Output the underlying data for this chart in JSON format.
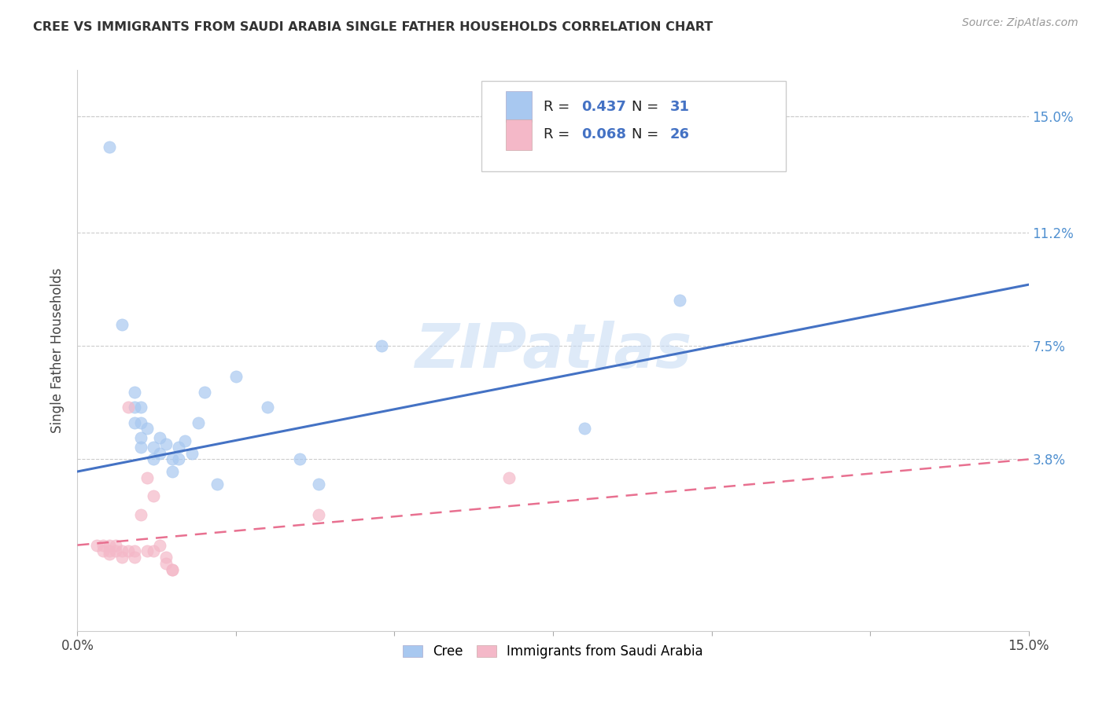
{
  "title": "CREE VS IMMIGRANTS FROM SAUDI ARABIA SINGLE FATHER HOUSEHOLDS CORRELATION CHART",
  "source": "Source: ZipAtlas.com",
  "ylabel": "Single Father Households",
  "xlim": [
    0.0,
    0.15
  ],
  "ylim": [
    -0.018,
    0.165
  ],
  "legend_blue_r": "0.437",
  "legend_blue_n": "31",
  "legend_pink_r": "0.068",
  "legend_pink_n": "26",
  "blue_color": "#A8C8F0",
  "pink_color": "#F4B8C8",
  "blue_line_color": "#4472C4",
  "pink_line_color": "#E87090",
  "watermark_color": "#C8DCF4",
  "blue_scatter": [
    [
      0.005,
      0.14
    ],
    [
      0.007,
      0.082
    ],
    [
      0.009,
      0.06
    ],
    [
      0.009,
      0.055
    ],
    [
      0.009,
      0.05
    ],
    [
      0.01,
      0.055
    ],
    [
      0.01,
      0.05
    ],
    [
      0.01,
      0.045
    ],
    [
      0.01,
      0.042
    ],
    [
      0.011,
      0.048
    ],
    [
      0.012,
      0.042
    ],
    [
      0.012,
      0.038
    ],
    [
      0.013,
      0.045
    ],
    [
      0.013,
      0.04
    ],
    [
      0.014,
      0.043
    ],
    [
      0.015,
      0.038
    ],
    [
      0.015,
      0.034
    ],
    [
      0.016,
      0.042
    ],
    [
      0.016,
      0.038
    ],
    [
      0.017,
      0.044
    ],
    [
      0.018,
      0.04
    ],
    [
      0.019,
      0.05
    ],
    [
      0.02,
      0.06
    ],
    [
      0.022,
      0.03
    ],
    [
      0.025,
      0.065
    ],
    [
      0.03,
      0.055
    ],
    [
      0.035,
      0.038
    ],
    [
      0.038,
      0.03
    ],
    [
      0.048,
      0.075
    ],
    [
      0.08,
      0.048
    ],
    [
      0.095,
      0.09
    ]
  ],
  "pink_scatter": [
    [
      0.003,
      0.01
    ],
    [
      0.004,
      0.01
    ],
    [
      0.004,
      0.008
    ],
    [
      0.005,
      0.01
    ],
    [
      0.005,
      0.008
    ],
    [
      0.005,
      0.007
    ],
    [
      0.006,
      0.01
    ],
    [
      0.006,
      0.008
    ],
    [
      0.007,
      0.008
    ],
    [
      0.007,
      0.006
    ],
    [
      0.008,
      0.008
    ],
    [
      0.008,
      0.055
    ],
    [
      0.009,
      0.008
    ],
    [
      0.009,
      0.006
    ],
    [
      0.01,
      0.02
    ],
    [
      0.011,
      0.032
    ],
    [
      0.011,
      0.008
    ],
    [
      0.012,
      0.008
    ],
    [
      0.012,
      0.026
    ],
    [
      0.013,
      0.01
    ],
    [
      0.014,
      0.006
    ],
    [
      0.014,
      0.004
    ],
    [
      0.015,
      0.002
    ],
    [
      0.015,
      0.002
    ],
    [
      0.038,
      0.02
    ],
    [
      0.068,
      0.032
    ]
  ],
  "blue_trendline": [
    [
      0.0,
      0.034
    ],
    [
      0.15,
      0.095
    ]
  ],
  "pink_trendline": [
    [
      0.0,
      0.01
    ],
    [
      0.15,
      0.038
    ]
  ]
}
